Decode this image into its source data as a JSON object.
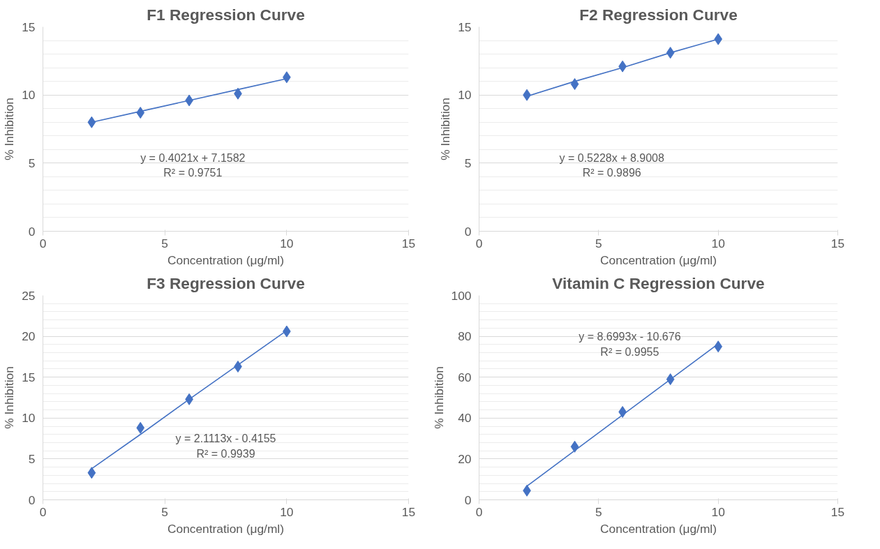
{
  "chart_data": [
    {
      "type": "scatter",
      "title": "F1 Regression Curve",
      "xlabel": "Concentration (μg/ml)",
      "ylabel": "% Inhibition",
      "xlim": [
        0,
        15
      ],
      "xticks": [
        0,
        5,
        10,
        15
      ],
      "ylim": [
        0,
        15
      ],
      "yticks": [
        0,
        5,
        10,
        15
      ],
      "grid": "y",
      "marker": "diamond",
      "x": [
        2,
        4,
        6,
        8,
        10
      ],
      "series": [
        {
          "color": "#4472c4",
          "values": [
            8.0,
            8.7,
            9.6,
            10.1,
            11.3
          ]
        },
        {
          "type": "line",
          "marker": "none",
          "color": "#4472c4",
          "values": [
            8.0,
            8.8,
            9.6,
            10.4,
            11.2
          ]
        }
      ],
      "annotations": [
        "y = 0.4021x + 7.1582",
        "R² = 0.9751"
      ]
    },
    {
      "type": "scatter",
      "title": "F2 Regression Curve",
      "xlabel": "Concentration (μg/ml)",
      "ylabel": "% Inhibition",
      "xlim": [
        0,
        15
      ],
      "xticks": [
        0,
        5,
        10,
        15
      ],
      "ylim": [
        0,
        15
      ],
      "yticks": [
        0,
        5,
        10,
        15
      ],
      "grid": "y",
      "marker": "diamond",
      "x": [
        2,
        4,
        6,
        8,
        10
      ],
      "series": [
        {
          "color": "#4472c4",
          "values": [
            10.0,
            10.8,
            12.1,
            13.1,
            14.1
          ]
        },
        {
          "type": "line",
          "marker": "none",
          "color": "#4472c4",
          "values": [
            9.9,
            11.0,
            12.0,
            13.1,
            14.1
          ]
        }
      ],
      "annotations": [
        "y = 0.5228x + 8.9008",
        "R² = 0.9896"
      ]
    },
    {
      "type": "scatter",
      "title": "F3 Regression Curve",
      "xlabel": "Concentration (μg/ml)",
      "ylabel": "% Inhibition",
      "xlim": [
        0,
        15
      ],
      "xticks": [
        0,
        5,
        10,
        15
      ],
      "ylim": [
        0,
        25
      ],
      "yticks": [
        0,
        5,
        10,
        15,
        20,
        25
      ],
      "grid": "y",
      "marker": "diamond",
      "x": [
        2,
        4,
        6,
        8,
        10
      ],
      "series": [
        {
          "color": "#4472c4",
          "values": [
            3.3,
            8.8,
            12.3,
            16.3,
            20.6
          ]
        },
        {
          "type": "line",
          "marker": "none",
          "color": "#4472c4",
          "values": [
            3.8,
            8.0,
            12.3,
            16.5,
            20.7
          ]
        }
      ],
      "annotations": [
        "y = 2.1113x - 0.4155",
        "R² = 0.9939"
      ]
    },
    {
      "type": "scatter",
      "title": "Vitamin C Regression Curve",
      "xlabel": "Concentration (μg/ml)",
      "ylabel": "% Inhibition",
      "xlim": [
        0,
        15
      ],
      "xticks": [
        0,
        5,
        10,
        15
      ],
      "ylim": [
        0,
        100
      ],
      "yticks": [
        0,
        20,
        40,
        60,
        80,
        100
      ],
      "grid": "y",
      "marker": "diamond",
      "x": [
        2,
        4,
        6,
        8,
        10
      ],
      "series": [
        {
          "color": "#4472c4",
          "values": [
            4.5,
            26,
            43,
            59,
            75
          ]
        },
        {
          "type": "line",
          "marker": "none",
          "color": "#4472c4",
          "values": [
            6.7,
            24.1,
            41.5,
            58.9,
            76.3
          ]
        }
      ],
      "annotations": [
        "y = 8.6993x - 10.676",
        "R² = 0.9955"
      ]
    }
  ]
}
